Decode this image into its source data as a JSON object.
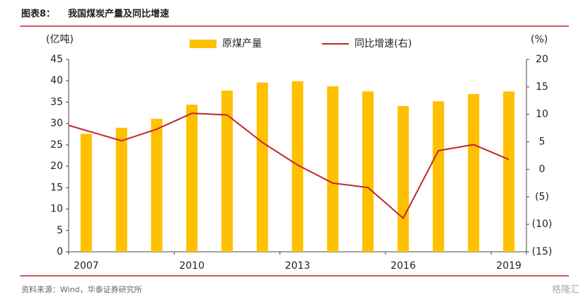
{
  "chart_data": {
    "type": "bar_line",
    "title_prefix": "图表8：",
    "title": "我国煤炭产量及同比增速",
    "ylabel": "(亿吨)",
    "y2label": "(%)",
    "source": "资料来源：Wind，华泰证券研究所",
    "watermark": "格隆汇",
    "categories": [
      "2007",
      null,
      null,
      "2010",
      null,
      null,
      "2013",
      null,
      null,
      "2016",
      null,
      null,
      "2019"
    ],
    "series": [
      {
        "name": "原煤产量",
        "type": "bar",
        "color": "#ffc000",
        "values": [
          27.6,
          29.0,
          31.1,
          34.4,
          37.7,
          39.6,
          39.9,
          38.7,
          37.5,
          34.1,
          35.2,
          36.9,
          37.5
        ]
      },
      {
        "name": "同比增速(右)",
        "type": "line",
        "axis": "y2",
        "color": "#c0282d",
        "values": [
          8.0,
          5.2,
          7.3,
          10.2,
          9.9,
          4.9,
          0.8,
          -2.5,
          -3.3,
          -8.9,
          3.4,
          4.5,
          1.8
        ]
      }
    ],
    "ylim": [
      0,
      45
    ],
    "yticks": [
      0,
      5,
      10,
      15,
      20,
      25,
      30,
      35,
      40,
      45
    ],
    "y2lim": [
      -15,
      20
    ],
    "y2ticks": [
      {
        "value": -15,
        "label": "(15)"
      },
      {
        "value": -10,
        "label": "(10)"
      },
      {
        "value": -5,
        "label": "(5)"
      },
      0,
      5,
      10,
      15,
      20
    ]
  }
}
